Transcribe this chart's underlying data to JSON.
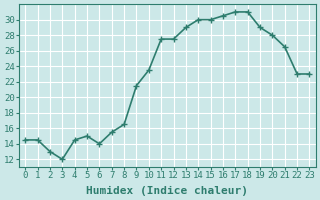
{
  "x": [
    0,
    1,
    2,
    3,
    4,
    5,
    6,
    7,
    8,
    9,
    10,
    11,
    12,
    13,
    14,
    15,
    16,
    17,
    18,
    19,
    20,
    21,
    22,
    23
  ],
  "y": [
    14.5,
    14.5,
    13.0,
    12.0,
    14.5,
    15.0,
    14.0,
    15.5,
    16.5,
    21.5,
    23.5,
    27.5,
    27.5,
    29.0,
    30.0,
    30.0,
    30.5,
    31.0,
    31.0,
    29.0,
    28.0,
    26.5,
    23.0,
    23.0
  ],
  "line_color": "#2e7d6e",
  "marker": "+",
  "marker_size": 4,
  "bg_color": "#cce8e8",
  "grid_color": "#ffffff",
  "xlabel": "Humidex (Indice chaleur)",
  "ylim": [
    11,
    32
  ],
  "xlim": [
    -0.5,
    23.5
  ],
  "yticks": [
    12,
    14,
    16,
    18,
    20,
    22,
    24,
    26,
    28,
    30
  ],
  "xticks": [
    0,
    1,
    2,
    3,
    4,
    5,
    6,
    7,
    8,
    9,
    10,
    11,
    12,
    13,
    14,
    15,
    16,
    17,
    18,
    19,
    20,
    21,
    22,
    23
  ],
  "tick_color": "#2e7d6e",
  "spine_color": "#2e7d6e",
  "xlabel_fontsize": 8,
  "tick_fontsize": 6.5,
  "linewidth": 1.2
}
